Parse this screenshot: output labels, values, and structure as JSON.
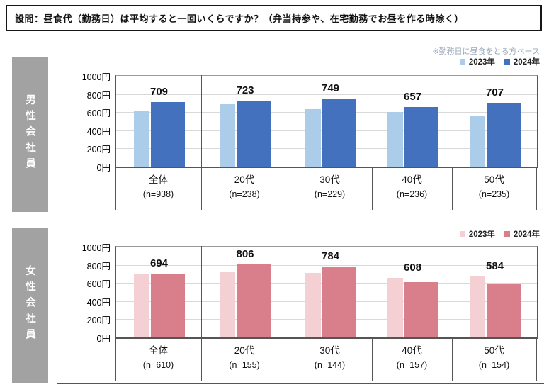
{
  "title": "設問：昼食代（勤務日）は平均すると一回いくらですか？（弁当持参や、在宅勤務でお昼を作る時除く）",
  "note": "※勤務日に昼食をとる方ベース",
  "legend": {
    "item2023": "2023年",
    "item2024": "2024年"
  },
  "sidebar": {
    "male": "男性会社員",
    "female": "女性会社員"
  },
  "colors": {
    "male_2023": "#ABCDEA",
    "male_2024": "#4471BE",
    "female_2023": "#F4D0D5",
    "female_2024": "#D97F8B",
    "sidebar_bg": "#A2A2A2",
    "note_text": "#9AA8B9",
    "grid": "#D9D9D9",
    "axis": "#555555"
  },
  "chart_data": [
    {
      "type": "bar",
      "group_label": "男性会社員",
      "categories": [
        "全体",
        "20代",
        "30代",
        "40代",
        "50代"
      ],
      "sample_sizes": [
        "(n=938)",
        "(n=238)",
        "(n=229)",
        "(n=236)",
        "(n=235)"
      ],
      "series": [
        {
          "name": "2023年",
          "color_key": "male_2023",
          "values": [
            615,
            685,
            630,
            598,
            565
          ],
          "values_estimated_from_bars": true,
          "data_labels_shown": false
        },
        {
          "name": "2024年",
          "color_key": "male_2024",
          "values": [
            709,
            723,
            749,
            657,
            707
          ],
          "data_labels_shown": true
        }
      ],
      "value_labels": [
        "709",
        "723",
        "749",
        "657",
        "707"
      ],
      "y_ticks": [
        "1000円",
        "800円",
        "600円",
        "400円",
        "200円",
        "0円"
      ],
      "ylim": [
        0,
        1000
      ],
      "grid": true,
      "legend_position": "top-right"
    },
    {
      "type": "bar",
      "group_label": "女性会社員",
      "categories": [
        "全体",
        "20代",
        "30代",
        "40代",
        "50代"
      ],
      "sample_sizes": [
        "(n=610)",
        "(n=155)",
        "(n=144)",
        "(n=157)",
        "(n=154)"
      ],
      "series": [
        {
          "name": "2023年",
          "color_key": "female_2023",
          "values": [
            700,
            715,
            710,
            660,
            670
          ],
          "values_estimated_from_bars": true,
          "data_labels_shown": false
        },
        {
          "name": "2024年",
          "color_key": "female_2024",
          "values": [
            694,
            806,
            784,
            608,
            584
          ],
          "data_labels_shown": true
        }
      ],
      "value_labels": [
        "694",
        "806",
        "784",
        "608",
        "584"
      ],
      "y_ticks": [
        "1000円",
        "800円",
        "600円",
        "400円",
        "200円",
        "0円"
      ],
      "ylim": [
        0,
        1000
      ],
      "grid": true,
      "legend_position": "top-right"
    }
  ]
}
